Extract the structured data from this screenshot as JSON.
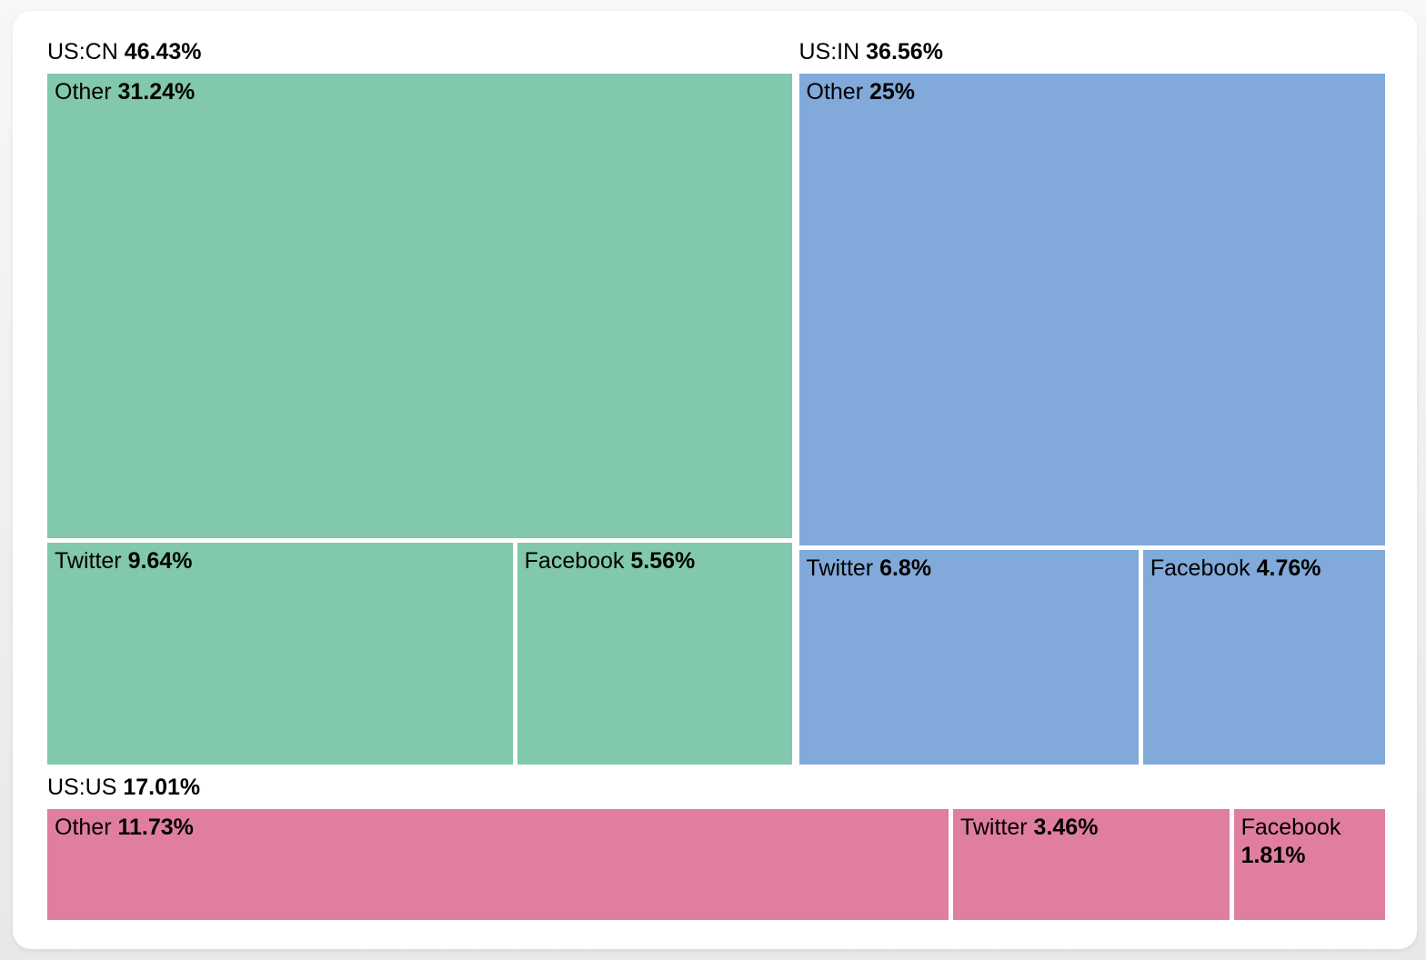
{
  "page": {
    "background_top": "#f6f7f9",
    "background_bottom": "#e7e8ea",
    "card_background": "#ffffff"
  },
  "chart_data": {
    "type": "treemap",
    "unit": "%",
    "legend_position": "none",
    "text_color": "#000000",
    "groups": [
      {
        "label": "US:CN",
        "value": 46.43,
        "value_label": "46.43%",
        "color": "#81c8ac",
        "children": [
          {
            "label": "Other",
            "value": 31.24,
            "value_label": "31.24%"
          },
          {
            "label": "Twitter",
            "value": 9.64,
            "value_label": "9.64%"
          },
          {
            "label": "Facebook",
            "value": 5.56,
            "value_label": "5.56%"
          }
        ]
      },
      {
        "label": "US:IN",
        "value": 36.56,
        "value_label": "36.56%",
        "color": "#81a9da",
        "children": [
          {
            "label": "Other",
            "value": 25,
            "value_label": "25%"
          },
          {
            "label": "Twitter",
            "value": 6.8,
            "value_label": "6.8%"
          },
          {
            "label": "Facebook",
            "value": 4.76,
            "value_label": "4.76%"
          }
        ]
      },
      {
        "label": "US:US",
        "value": 17.01,
        "value_label": "17.01%",
        "color": "#e07e9d",
        "children": [
          {
            "label": "Other",
            "value": 11.73,
            "value_label": "11.73%"
          },
          {
            "label": "Twitter",
            "value": 3.46,
            "value_label": "3.46%"
          },
          {
            "label": "Facebook",
            "value": 1.81,
            "value_label": "1.81%"
          }
        ]
      }
    ],
    "layout": {
      "top_groups": [
        "US:CN",
        "US:IN"
      ],
      "bottom_groups": [
        "US:US"
      ],
      "cn_lower_row_total": 15.2,
      "in_lower_row_total": 11.56
    }
  }
}
